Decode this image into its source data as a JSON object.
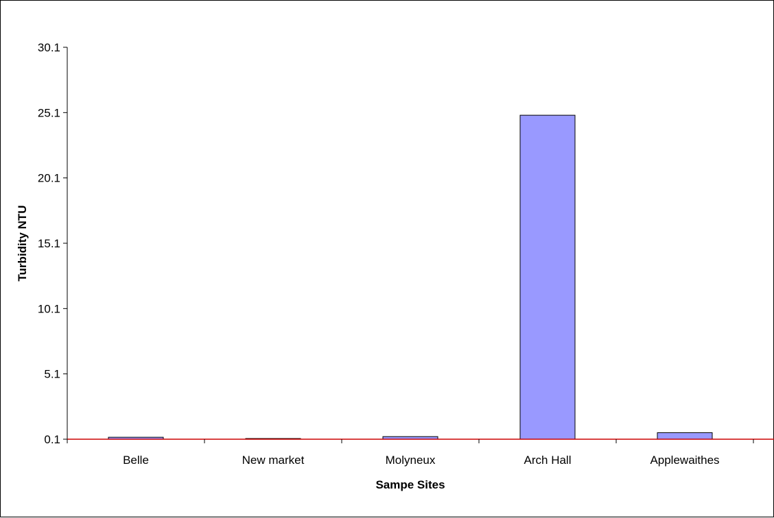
{
  "chart_data": {
    "type": "bar",
    "title": "",
    "xlabel": "Sampe Sites",
    "ylabel": "Turbidity NTU",
    "categories": [
      "Belle",
      "New market",
      "Molyneux",
      "Arch Hall",
      "Applewaithes"
    ],
    "values": [
      0.25,
      0.15,
      0.3,
      24.9,
      0.6
    ],
    "yticks": [
      "0.1",
      "5.1",
      "10.1",
      "15.1",
      "20.1",
      "25.1",
      "30.1"
    ],
    "ylim": [
      0.1,
      30.1
    ],
    "reference_line": 0.1,
    "grid": false,
    "legend": "none",
    "colors": {
      "bar_fill": "#9999ff",
      "bar_stroke": "#000000",
      "axis": "#000000",
      "reference_line": "#cc0000"
    }
  }
}
